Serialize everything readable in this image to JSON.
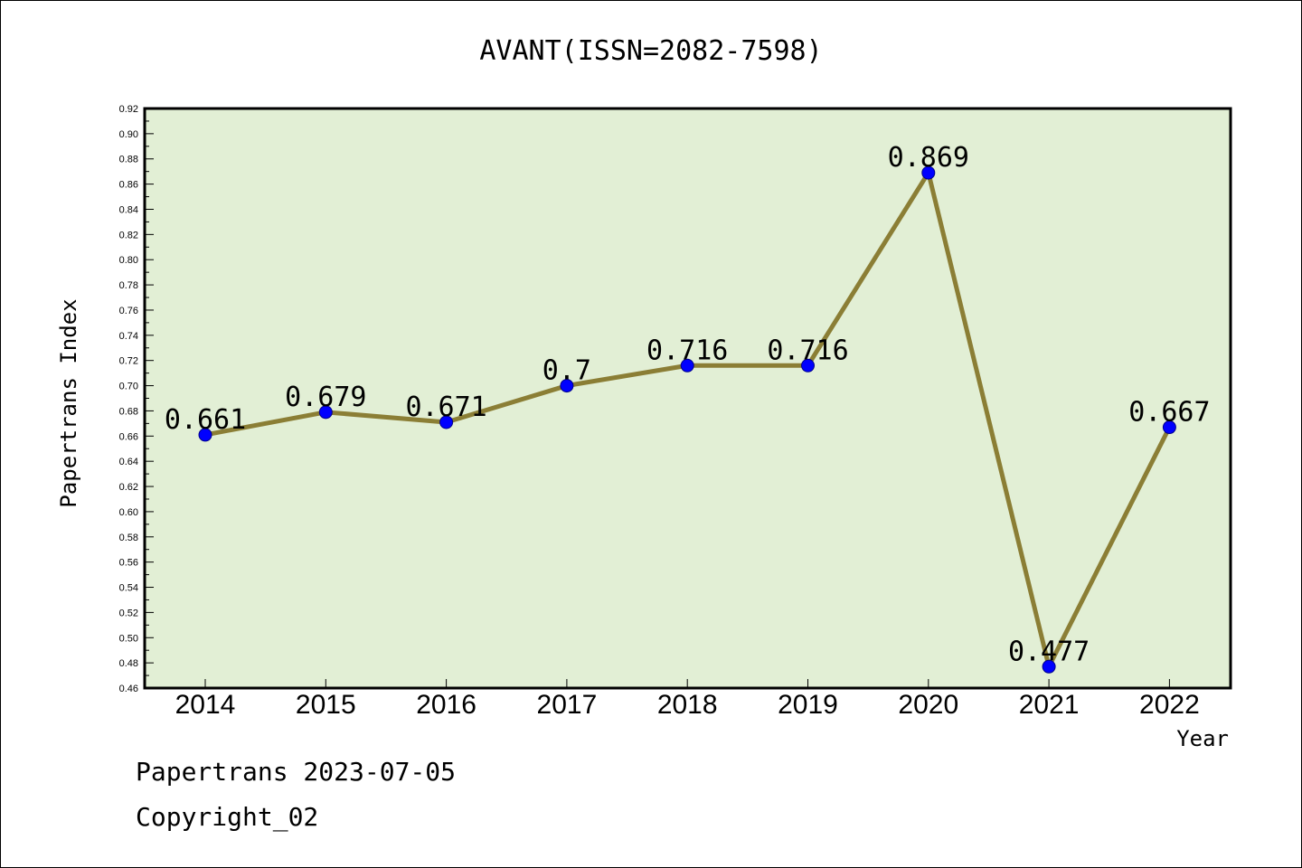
{
  "chart_data": {
    "type": "line",
    "title": "AVANT(ISSN=2082-7598)",
    "xlabel": "Year",
    "ylabel": "Papertrans Index",
    "categories": [
      "2014",
      "2015",
      "2016",
      "2017",
      "2018",
      "2019",
      "2020",
      "2021",
      "2022"
    ],
    "series": [
      {
        "values": [
          0.661,
          0.679,
          0.671,
          0.7,
          0.716,
          0.716,
          0.869,
          0.477,
          0.667
        ]
      }
    ],
    "data_labels": [
      "0.661",
      "0.679",
      "0.671",
      "0.7",
      "0.716",
      "0.716",
      "0.869",
      "0.477",
      "0.667"
    ],
    "ylim": [
      0.46,
      0.92
    ],
    "yticks": [
      "0.46",
      "0.48",
      "0.50",
      "0.52",
      "0.54",
      "0.56",
      "0.58",
      "0.60",
      "0.62",
      "0.64",
      "0.66",
      "0.68",
      "0.70",
      "0.72",
      "0.74",
      "0.76",
      "0.78",
      "0.80",
      "0.82",
      "0.84",
      "0.86",
      "0.88",
      "0.90",
      "0.92"
    ],
    "grid": false,
    "legend": "none",
    "colors": {
      "plot_background": "#e2efd5",
      "line": "#8b7e35",
      "marker": "#0000ff"
    }
  },
  "footer": {
    "line1": "Papertrans 2023-07-05",
    "line2": "Copyright_02"
  }
}
